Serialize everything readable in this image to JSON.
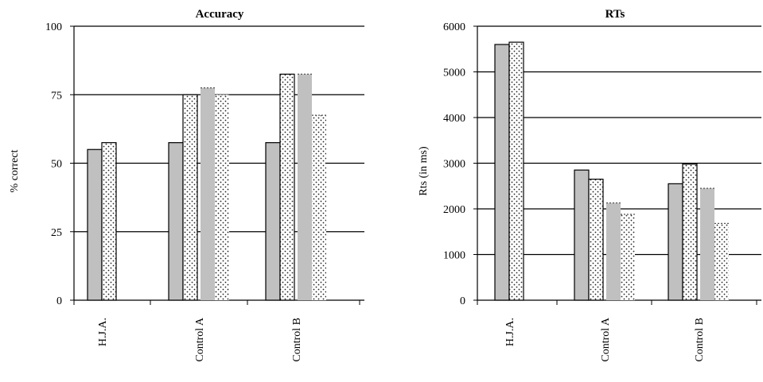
{
  "chart_data": [
    {
      "type": "bar",
      "title": "Accuracy",
      "ylabel": "% correct",
      "xlabel": "",
      "ylim": [
        0,
        100
      ],
      "yticks": [
        0,
        25,
        50,
        75,
        100
      ],
      "grid": true,
      "categories": [
        "H.J.A.",
        "Control A",
        "Control B"
      ],
      "bars": [
        [
          {
            "value": 55,
            "fill": "#c0c0c0",
            "pattern": "solid",
            "border": "solid"
          },
          {
            "value": 57.5,
            "fill": "#ffffff",
            "pattern": "dots",
            "border": "solid"
          }
        ],
        [
          {
            "value": 57.5,
            "fill": "#c0c0c0",
            "pattern": "solid",
            "border": "solid"
          },
          {
            "value": 75,
            "fill": "#ffffff",
            "pattern": "dots",
            "border": "solid"
          },
          {
            "value": 77.5,
            "fill": "#c0c0c0",
            "pattern": "solid",
            "border": "dashed"
          },
          {
            "value": 75,
            "fill": "#ffffff",
            "pattern": "dots",
            "border": "dashed"
          }
        ],
        [
          {
            "value": 57.5,
            "fill": "#c0c0c0",
            "pattern": "solid",
            "border": "solid"
          },
          {
            "value": 82.5,
            "fill": "#ffffff",
            "pattern": "dots",
            "border": "solid"
          },
          {
            "value": 82.5,
            "fill": "#c0c0c0",
            "pattern": "solid",
            "border": "dashed"
          },
          {
            "value": 67.5,
            "fill": "#ffffff",
            "pattern": "dots",
            "border": "dashed"
          }
        ]
      ]
    },
    {
      "type": "bar",
      "title": "RTs",
      "ylabel": "Rts (in ms)",
      "xlabel": "",
      "ylim": [
        0,
        6000
      ],
      "yticks": [
        0,
        1000,
        2000,
        3000,
        4000,
        5000,
        6000
      ],
      "grid": true,
      "categories": [
        "H.J.A.",
        "Control A",
        "Control B"
      ],
      "bars": [
        [
          {
            "value": 5600,
            "fill": "#c0c0c0",
            "pattern": "solid",
            "border": "solid"
          },
          {
            "value": 5650,
            "fill": "#ffffff",
            "pattern": "dots",
            "border": "solid"
          }
        ],
        [
          {
            "value": 2850,
            "fill": "#c0c0c0",
            "pattern": "solid",
            "border": "solid"
          },
          {
            "value": 2650,
            "fill": "#ffffff",
            "pattern": "dots",
            "border": "solid"
          },
          {
            "value": 2130,
            "fill": "#c0c0c0",
            "pattern": "solid",
            "border": "dashed"
          },
          {
            "value": 1880,
            "fill": "#ffffff",
            "pattern": "dots",
            "border": "dashed"
          }
        ],
        [
          {
            "value": 2550,
            "fill": "#c0c0c0",
            "pattern": "solid",
            "border": "solid"
          },
          {
            "value": 2980,
            "fill": "#ffffff",
            "pattern": "dots",
            "border": "solid"
          },
          {
            "value": 2450,
            "fill": "#c0c0c0",
            "pattern": "solid",
            "border": "dashed"
          },
          {
            "value": 1680,
            "fill": "#ffffff",
            "pattern": "dots",
            "border": "dashed"
          }
        ]
      ]
    }
  ]
}
